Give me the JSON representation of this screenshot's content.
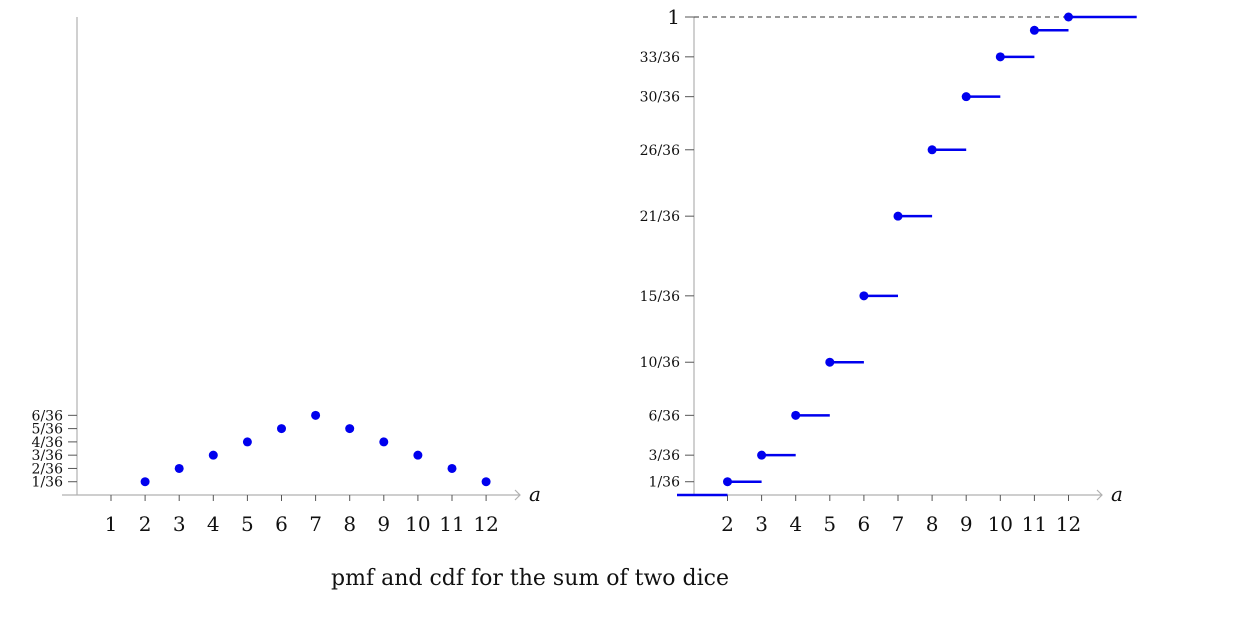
{
  "caption": "pmf and cdf for the sum of two dice",
  "colors": {
    "marks": "#0000ee",
    "axis": "#b0b0b0",
    "text": "#111111"
  },
  "chart_data": [
    {
      "type": "scatter",
      "title": "",
      "xlabel": "a",
      "ylabel": "",
      "x_ticks": [
        "1",
        "2",
        "3",
        "4",
        "5",
        "6",
        "7",
        "8",
        "9",
        "10",
        "11",
        "12"
      ],
      "y_ticks": [
        {
          "value": 0.027778,
          "label": "1/36"
        },
        {
          "value": 0.055556,
          "label": "2/36"
        },
        {
          "value": 0.083333,
          "label": "3/36"
        },
        {
          "value": 0.111111,
          "label": "4/36"
        },
        {
          "value": 0.138889,
          "label": "5/36"
        },
        {
          "value": 0.166667,
          "label": "6/36"
        }
      ],
      "x": [
        2,
        3,
        4,
        5,
        6,
        7,
        8,
        9,
        10,
        11,
        12
      ],
      "y": [
        0.027778,
        0.055556,
        0.083333,
        0.111111,
        0.138889,
        0.166667,
        0.138889,
        0.111111,
        0.083333,
        0.055556,
        0.027778
      ],
      "xlim": [
        0,
        12.5
      ],
      "ylim": [
        0,
        1.0
      ],
      "grid": false
    },
    {
      "type": "line",
      "subtype": "step",
      "title": "",
      "xlabel": "a",
      "ylabel": "",
      "x_ticks": [
        "2",
        "3",
        "4",
        "5",
        "6",
        "7",
        "8",
        "9",
        "10",
        "11",
        "12"
      ],
      "y_ticks": [
        {
          "value": 0.027778,
          "label": "1/36"
        },
        {
          "value": 0.083333,
          "label": "3/36"
        },
        {
          "value": 0.166667,
          "label": "6/36"
        },
        {
          "value": 0.277778,
          "label": "10/36"
        },
        {
          "value": 0.416667,
          "label": "15/36"
        },
        {
          "value": 0.583333,
          "label": "21/36"
        },
        {
          "value": 0.722222,
          "label": "26/36"
        },
        {
          "value": 0.833333,
          "label": "30/36"
        },
        {
          "value": 0.916667,
          "label": "33/36"
        },
        {
          "value": 1.0,
          "label": "1"
        }
      ],
      "x": [
        2,
        3,
        4,
        5,
        6,
        7,
        8,
        9,
        10,
        11,
        12
      ],
      "y": [
        0.027778,
        0.083333,
        0.166667,
        0.277778,
        0.416667,
        0.583333,
        0.722222,
        0.833333,
        0.916667,
        0.972222,
        1.0
      ],
      "xlim": [
        0.5,
        14
      ],
      "ylim": [
        0,
        1.0
      ],
      "reference_line": {
        "y": 1.0,
        "style": "dashed"
      },
      "grid": false
    }
  ]
}
